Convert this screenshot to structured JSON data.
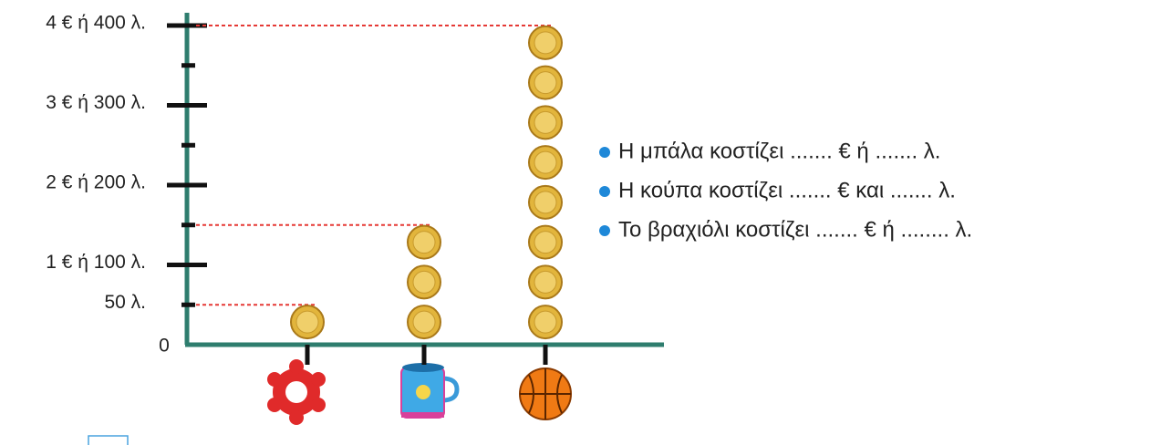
{
  "chart_data": {
    "type": "pictograph",
    "categories": [
      null,
      null,
      null
    ],
    "values": [
      50,
      150,
      400
    ],
    "coin_value": 50,
    "ylim": [
      0,
      400
    ],
    "yticks": [
      0,
      {
        "value": 50,
        "label": "50 λ."
      },
      {
        "value": 100,
        "label": "1 € ή 100 λ."
      },
      {
        "value": 200,
        "label": "2 € ή 200 λ."
      },
      {
        "value": 300,
        "label": "3 € ή 300 λ."
      },
      {
        "value": 400,
        "label": "4 € ή 400 λ."
      }
    ],
    "yticks_minor": [
      150,
      250,
      350
    ],
    "axis_color": "#2e7d6e",
    "guide_color": "#e53935",
    "annotations": [
      "Η μπάλα κοστίζει ....... € ή ....... λ.",
      "Η κούπα κοστίζει ....... € και ....... λ.",
      "Το βραχιόλι κοστίζει ....... € ή ........ λ."
    ]
  }
}
